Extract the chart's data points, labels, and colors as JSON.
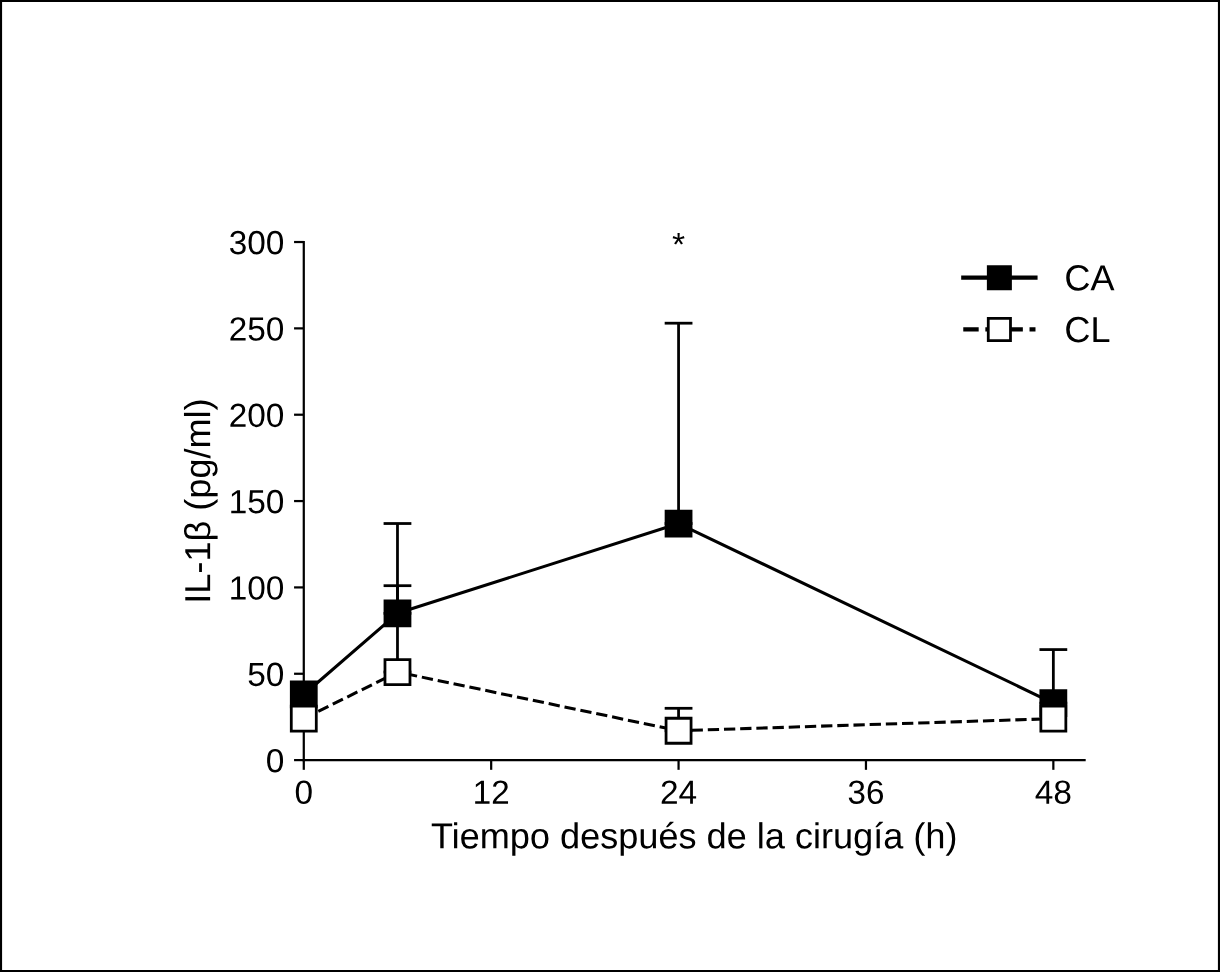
{
  "chart_data": {
    "type": "line",
    "xlabel": "Tiempo después de la cirugía (h)",
    "ylabel": "IL-1β (pg/ml)",
    "x": [
      0,
      6,
      24,
      48
    ],
    "series": [
      {
        "name": "CA",
        "color": "#000000",
        "values": [
          38,
          85,
          137,
          33
        ],
        "errors": [
          null,
          [
            85,
            137
          ],
          [
            137,
            253
          ],
          [
            33,
            64
          ]
        ],
        "marker": "square",
        "line_style": "solid"
      },
      {
        "name": "CL",
        "color": "#000000",
        "values": [
          24,
          51,
          17,
          24
        ],
        "errors": [
          null,
          [
            51,
            101
          ],
          [
            17,
            30
          ],
          null
        ],
        "marker": "square",
        "line_style": "dashed"
      }
    ],
    "xlim": [
      0,
      50
    ],
    "xticks": [
      0,
      12,
      24,
      36,
      48
    ],
    "ylim": [
      0,
      300
    ],
    "yticks": [
      0,
      50,
      100,
      150,
      200,
      250,
      300
    ],
    "annotations": [
      "*"
    ],
    "legend": "top right",
    "grid": false
  }
}
